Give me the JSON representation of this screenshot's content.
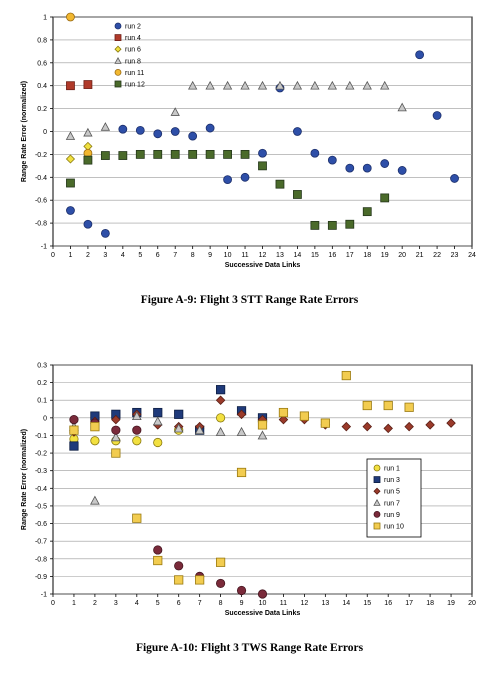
{
  "chart_data": [
    {
      "type": "scatter",
      "caption": "Figure A-9:  Flight 3 STT Range Rate Errors",
      "xlabel": "Successive Data Links",
      "ylabel": "Range Rate Error (normalized)",
      "xlim": [
        0,
        24
      ],
      "ylim": [
        -1,
        1
      ],
      "xticks": [
        0,
        1,
        2,
        3,
        4,
        5,
        6,
        7,
        8,
        9,
        10,
        11,
        12,
        13,
        14,
        15,
        16,
        17,
        18,
        19,
        20,
        21,
        22,
        23,
        24
      ],
      "yticks": [
        -1,
        -0.8,
        -0.6,
        -0.4,
        -0.2,
        0,
        0.2,
        0.4,
        0.6,
        0.8,
        1
      ],
      "ytick_labels": [
        "-1",
        "-0.8",
        "-0.6",
        "-0.4",
        "-0.2",
        "0",
        "0.2",
        "0.4",
        "0.6",
        "0.8",
        "1"
      ],
      "grid": "horizontal",
      "legend_position": "top-left",
      "series": [
        {
          "name": "run 2",
          "marker": "circle",
          "fill": "#2e4fa8",
          "stroke": "#1c2f6b",
          "x": [
            1,
            2,
            3,
            4,
            5,
            6,
            7,
            8,
            9,
            10,
            11,
            12,
            13,
            14,
            15,
            16,
            17,
            18,
            19,
            20,
            21,
            22,
            23
          ],
          "y": [
            -0.69,
            -0.81,
            -0.89,
            0.02,
            0.01,
            -0.02,
            0,
            -0.04,
            0.03,
            -0.42,
            -0.4,
            -0.19,
            0.38,
            0,
            -0.19,
            -0.25,
            -0.32,
            -0.32,
            -0.28,
            -0.34,
            0.67,
            0.14,
            -0.41
          ]
        },
        {
          "name": "run 4",
          "marker": "square",
          "fill": "#b03a2a",
          "stroke": "#6e1f16",
          "x": [
            1,
            2
          ],
          "y": [
            0.4,
            0.41
          ]
        },
        {
          "name": "run 6",
          "marker": "diamond",
          "fill": "#f0e040",
          "stroke": "#8a7a10",
          "x": [
            1,
            2
          ],
          "y": [
            -0.24,
            -0.13
          ]
        },
        {
          "name": "run 8",
          "marker": "triangle",
          "fill": "#c8c8c8",
          "stroke": "#555555",
          "x": [
            1,
            2,
            3,
            7,
            8,
            9,
            10,
            11,
            12,
            13,
            14,
            15,
            16,
            17,
            18,
            19,
            20
          ],
          "y": [
            -0.04,
            -0.01,
            0.04,
            0.17,
            0.4,
            0.4,
            0.4,
            0.4,
            0.4,
            0.4,
            0.4,
            0.4,
            0.4,
            0.4,
            0.4,
            0.4,
            0.21
          ]
        },
        {
          "name": "run 11",
          "marker": "circle",
          "fill": "#f2b830",
          "stroke": "#9a6a10",
          "x": [
            1,
            2
          ],
          "y": [
            1.0,
            -0.19
          ]
        },
        {
          "name": "run 12",
          "marker": "square",
          "fill": "#4a6a2a",
          "stroke": "#24361a",
          "x": [
            1,
            2,
            3,
            4,
            5,
            6,
            7,
            8,
            9,
            10,
            11,
            12,
            13,
            14,
            15,
            16,
            17,
            18,
            19
          ],
          "y": [
            -0.45,
            -0.25,
            -0.21,
            -0.21,
            -0.2,
            -0.2,
            -0.2,
            -0.2,
            -0.2,
            -0.2,
            -0.2,
            -0.3,
            -0.46,
            -0.55,
            -0.82,
            -0.82,
            -0.81,
            -0.7,
            -0.58
          ]
        }
      ]
    },
    {
      "type": "scatter",
      "caption": "Figure A-10:  Flight 3 TWS Range Rate Errors",
      "xlabel": "Successive Data Links",
      "ylabel": "Range Rate Error (normalized)",
      "xlim": [
        0,
        20
      ],
      "ylim": [
        -1,
        0.3
      ],
      "xticks": [
        0,
        1,
        2,
        3,
        4,
        5,
        6,
        7,
        8,
        9,
        10,
        11,
        12,
        13,
        14,
        15,
        16,
        17,
        18,
        19,
        20
      ],
      "yticks": [
        -1,
        -0.9,
        -0.8,
        -0.7,
        -0.6,
        -0.5,
        -0.4,
        -0.3,
        -0.2,
        -0.1,
        0,
        0.1,
        0.2,
        0.3
      ],
      "ytick_labels": [
        "-1",
        "-0.9",
        "-0.8",
        "-0.7",
        "-0.6",
        "-0.5",
        "-0.4",
        "-0.3",
        "-0.2",
        "-0.1",
        "0",
        "0.1",
        "0.2",
        "0.3"
      ],
      "grid": "horizontal",
      "legend_position": "right",
      "series": [
        {
          "name": "run 1",
          "marker": "circle",
          "fill": "#f2e040",
          "stroke": "#8a7a10",
          "x": [
            1,
            2,
            3,
            4,
            5,
            6,
            7,
            8
          ],
          "y": [
            -0.12,
            -0.13,
            -0.13,
            -0.13,
            -0.14,
            -0.07,
            -0.06,
            0.0
          ]
        },
        {
          "name": "run 3",
          "marker": "square",
          "fill": "#1f3a7a",
          "stroke": "#0e1f44",
          "x": [
            1,
            2,
            3,
            4,
            5,
            6,
            7,
            8,
            9,
            10
          ],
          "y": [
            -0.16,
            0.01,
            0.02,
            0.03,
            0.03,
            0.02,
            -0.07,
            0.16,
            0.04,
            0.0
          ]
        },
        {
          "name": "run 5",
          "marker": "diamond",
          "fill": "#9a3a2a",
          "stroke": "#5a1f16",
          "x": [
            1,
            2,
            3,
            4,
            5,
            6,
            7,
            8,
            9,
            10,
            11,
            12,
            13,
            14,
            15,
            16,
            17,
            18,
            19
          ],
          "y": [
            -0.08,
            -0.02,
            -0.01,
            0.02,
            -0.04,
            -0.05,
            -0.05,
            0.1,
            0.02,
            -0.01,
            -0.01,
            -0.01,
            -0.04,
            -0.05,
            -0.05,
            -0.06,
            -0.05,
            -0.04,
            -0.03
          ]
        },
        {
          "name": "run 7",
          "marker": "triangle",
          "fill": "#c8c8c8",
          "stroke": "#555555",
          "x": [
            1,
            2,
            3,
            4,
            5,
            6,
            7,
            8,
            9,
            10
          ],
          "y": [
            -0.05,
            -0.47,
            -0.11,
            0.01,
            -0.02,
            -0.06,
            -0.07,
            -0.08,
            -0.08,
            -0.1
          ]
        },
        {
          "name": "run 9",
          "marker": "circle",
          "fill": "#7a2a3a",
          "stroke": "#441620",
          "x": [
            1,
            2,
            3,
            4,
            5,
            6,
            7,
            8,
            9,
            10
          ],
          "y": [
            -0.01,
            -0.03,
            -0.07,
            -0.07,
            -0.75,
            -0.84,
            -0.9,
            -0.94,
            -0.98,
            -1.0
          ]
        },
        {
          "name": "run 10",
          "marker": "square",
          "fill": "#f2cc50",
          "stroke": "#9a7a10",
          "x": [
            1,
            2,
            3,
            4,
            5,
            6,
            7,
            8,
            9,
            10,
            11,
            12,
            13,
            14,
            15,
            16,
            17
          ],
          "y": [
            -0.07,
            -0.05,
            -0.2,
            -0.57,
            -0.81,
            -0.92,
            -0.92,
            -0.82,
            -0.31,
            -0.04,
            0.03,
            0.01,
            -0.03,
            0.24,
            0.07,
            0.07,
            0.06
          ]
        }
      ]
    }
  ]
}
